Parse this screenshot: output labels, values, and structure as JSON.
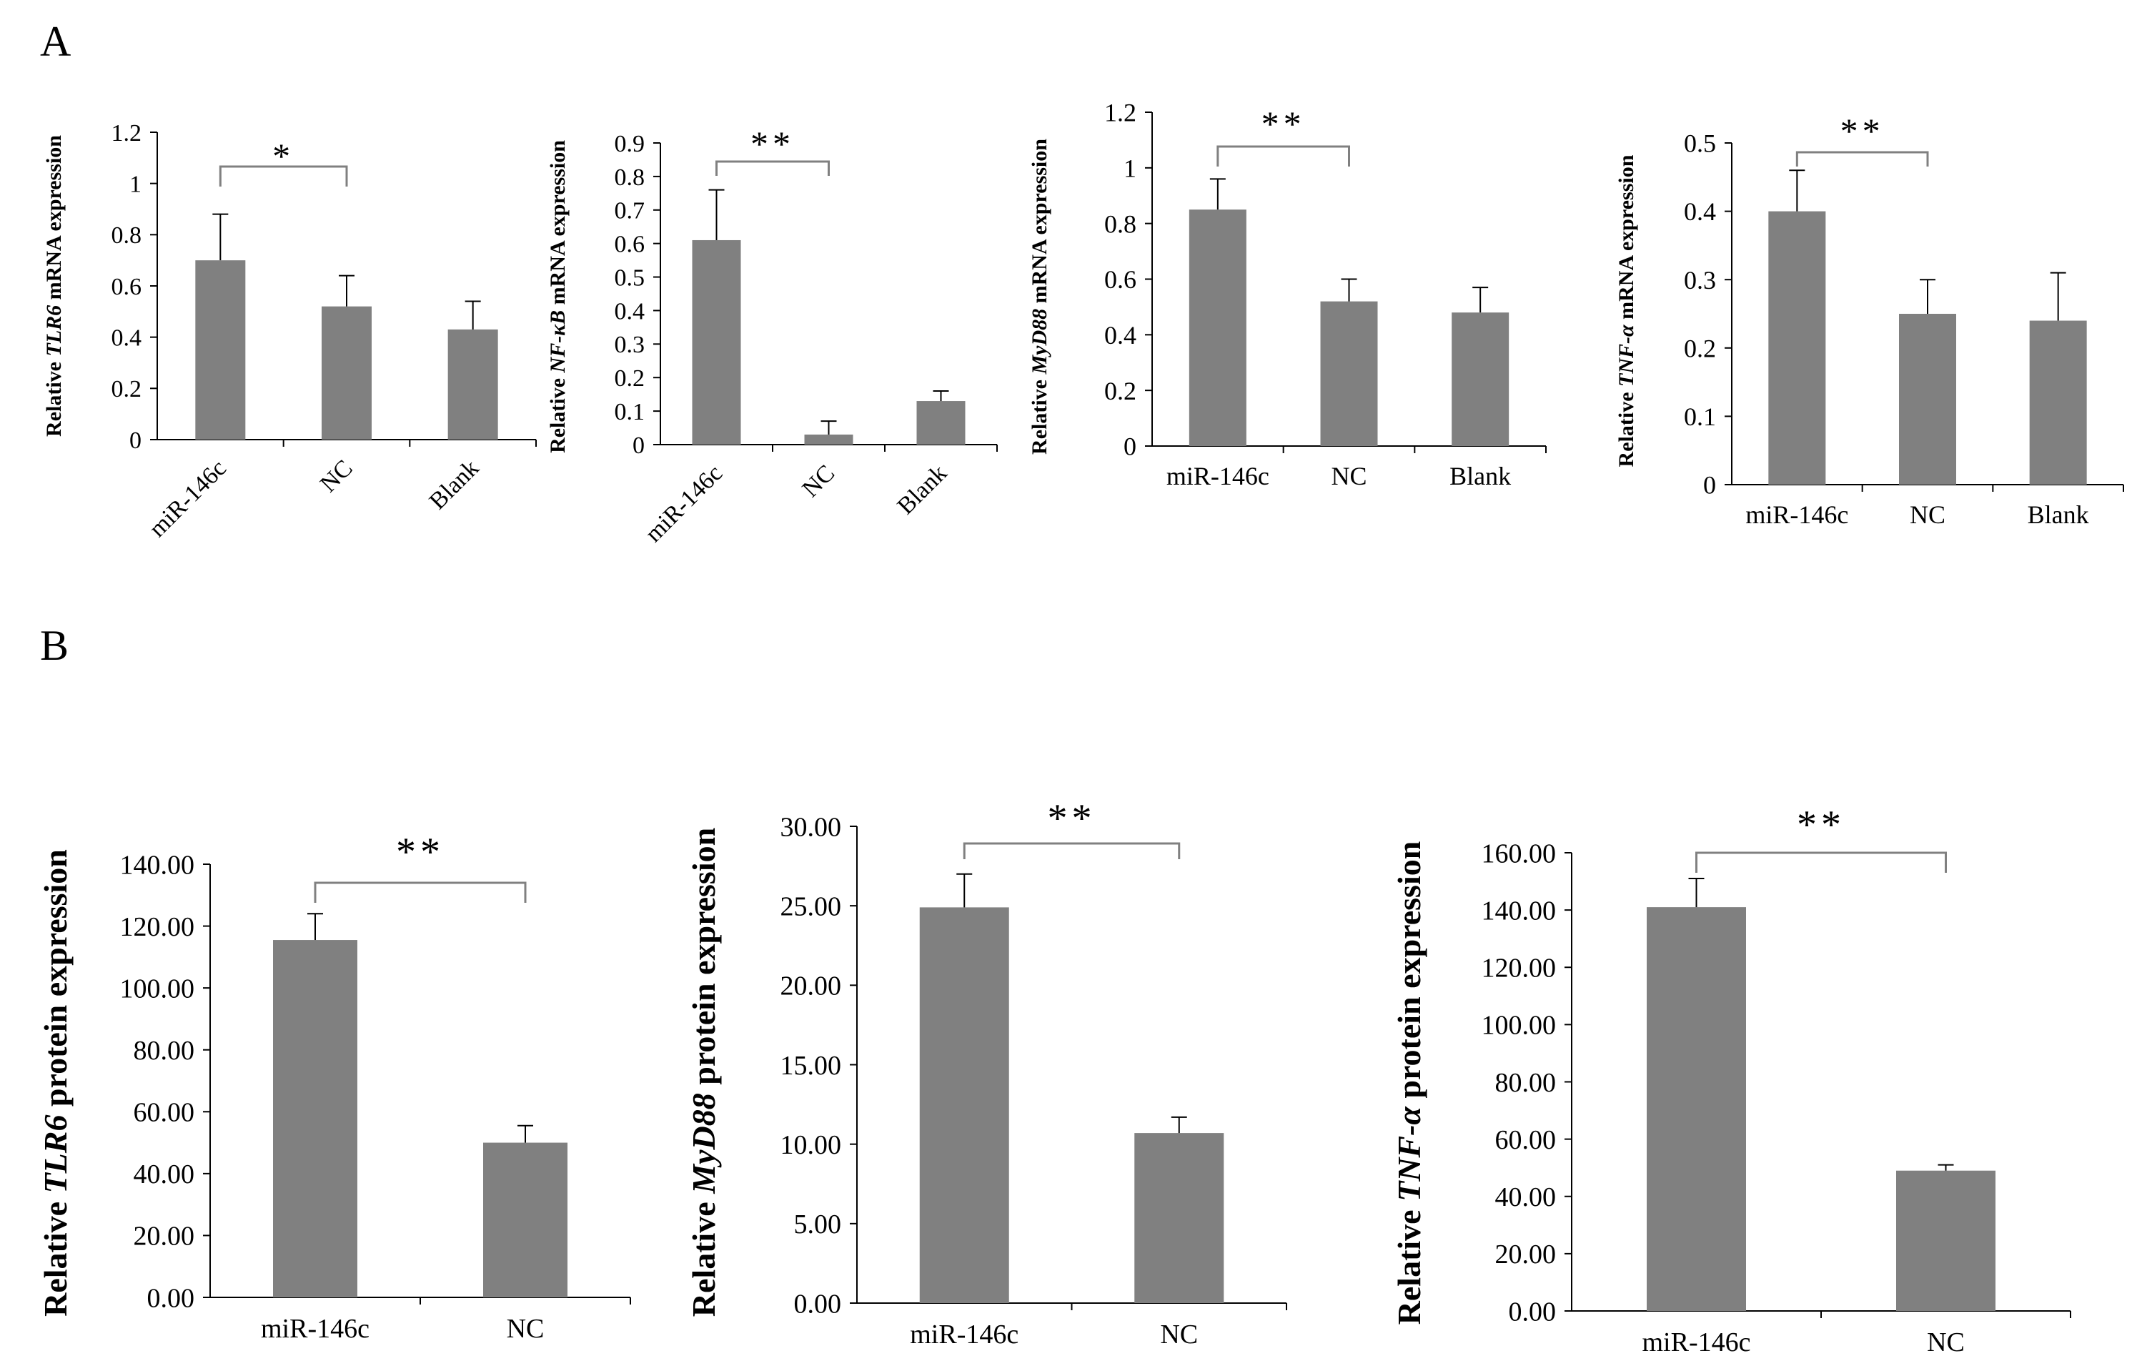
{
  "panels": {
    "A": "A",
    "B": "B"
  },
  "chart_data": [
    {
      "type": "bar",
      "panel": "A",
      "categories": [
        "miR-146c",
        "NC",
        "Blank"
      ],
      "values": [
        0.7,
        0.52,
        0.43
      ],
      "errors": [
        0.18,
        0.12,
        0.11
      ],
      "ylim": [
        0,
        1.2
      ],
      "yticks": [
        "0",
        "0.2",
        "0.4",
        "0.6",
        "0.8",
        "1",
        "1.2"
      ],
      "ylabel_prefix": "Relative ",
      "ylabel_gene": "TLR6",
      "ylabel_suffix": " mRNA expression",
      "significance": {
        "label": "*",
        "from": "miR-146c",
        "to": "NC"
      }
    },
    {
      "type": "bar",
      "panel": "A",
      "categories": [
        "miR-146c",
        "NC",
        "Blank"
      ],
      "values": [
        0.61,
        0.03,
        0.13
      ],
      "errors": [
        0.15,
        0.04,
        0.03
      ],
      "ylim": [
        0,
        0.9
      ],
      "yticks": [
        "0",
        "0.1",
        "0.2",
        "0.3",
        "0.4",
        "0.5",
        "0.6",
        "0.7",
        "0.8",
        "0.9"
      ],
      "ylabel_prefix": "Relative ",
      "ylabel_gene": "NF-κB",
      "ylabel_suffix": " mRNA expression",
      "significance": {
        "label": "**",
        "from": "miR-146c",
        "to": "NC"
      }
    },
    {
      "type": "bar",
      "panel": "A",
      "categories": [
        "miR-146c",
        "NC",
        "Blank"
      ],
      "values": [
        0.85,
        0.52,
        0.48
      ],
      "errors": [
        0.11,
        0.08,
        0.09
      ],
      "ylim": [
        0,
        1.2
      ],
      "yticks": [
        "0",
        "0.2",
        "0.4",
        "0.6",
        "0.8",
        "1",
        "1.2"
      ],
      "ylabel_prefix": "Relative ",
      "ylabel_gene": "MyD88",
      "ylabel_suffix": " mRNA expression",
      "significance": {
        "label": "**",
        "from": "miR-146c",
        "to": "NC"
      }
    },
    {
      "type": "bar",
      "panel": "A",
      "categories": [
        "miR-146c",
        "NC",
        "Blank"
      ],
      "values": [
        0.4,
        0.25,
        0.24
      ],
      "errors": [
        0.06,
        0.05,
        0.07
      ],
      "ylim": [
        0,
        0.5
      ],
      "yticks": [
        "0",
        "0.1",
        "0.2",
        "0.3",
        "0.4",
        "0.5"
      ],
      "ylabel_prefix": "Relative ",
      "ylabel_gene": "TNF-α",
      "ylabel_suffix": " mRNA expression",
      "significance": {
        "label": "**",
        "from": "miR-146c",
        "to": "NC"
      }
    },
    {
      "type": "bar",
      "panel": "B",
      "categories": [
        "miR-146c",
        "NC"
      ],
      "values": [
        115.5,
        50.0
      ],
      "errors": [
        8.5,
        5.5
      ],
      "ylim": [
        0,
        140
      ],
      "yticks": [
        "0.00",
        "20.00",
        "40.00",
        "60.00",
        "80.00",
        "100.00",
        "120.00",
        "140.00"
      ],
      "ylabel_prefix": "Relative ",
      "ylabel_gene": "TLR6",
      "ylabel_suffix": " protein expression",
      "significance": {
        "label": "**",
        "from": "miR-146c",
        "to": "NC"
      }
    },
    {
      "type": "bar",
      "panel": "B",
      "categories": [
        "miR-146c",
        "NC"
      ],
      "values": [
        24.9,
        10.7
      ],
      "errors": [
        2.1,
        1.0
      ],
      "ylim": [
        0,
        30
      ],
      "yticks": [
        "0.00",
        "5.00",
        "10.00",
        "15.00",
        "20.00",
        "25.00",
        "30.00"
      ],
      "ylabel_prefix": "Relative ",
      "ylabel_gene": "MyD88",
      "ylabel_suffix": " protein expression",
      "significance": {
        "label": "**",
        "from": "miR-146c",
        "to": "NC"
      }
    },
    {
      "type": "bar",
      "panel": "B",
      "categories": [
        "miR-146c",
        "NC"
      ],
      "values": [
        141.0,
        49.0
      ],
      "errors": [
        10.0,
        2.0
      ],
      "ylim": [
        0,
        160
      ],
      "yticks": [
        "0.00",
        "20.00",
        "40.00",
        "60.00",
        "80.00",
        "100.00",
        "120.00",
        "140.00",
        "160.00"
      ],
      "ylabel_prefix": "Relative ",
      "ylabel_gene": "TNF-α",
      "ylabel_suffix": " protein expression",
      "significance": {
        "label": "**",
        "from": "miR-146c",
        "to": "NC"
      }
    }
  ],
  "colors": {
    "bar": "#808080",
    "axis": "#000000",
    "bracket": "#808080"
  }
}
